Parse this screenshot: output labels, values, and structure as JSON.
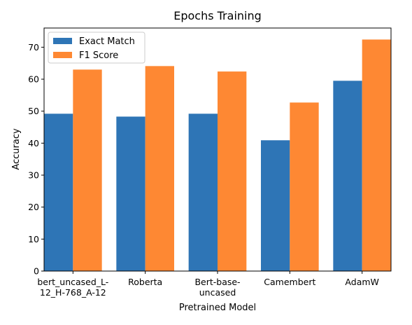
{
  "chart_data": {
    "type": "bar",
    "title": "Epochs Training",
    "xlabel": "Pretrained Model",
    "ylabel": "Accuracy",
    "categories": [
      [
        "bert_uncased_L-",
        "12_H-768_A-12"
      ],
      [
        "Roberta"
      ],
      [
        "Bert-base-",
        "uncased"
      ],
      [
        "Camembert"
      ],
      [
        "AdamW"
      ]
    ],
    "series": [
      {
        "name": "Exact Match",
        "color": "#2e75b6",
        "values": [
          49.2,
          48.3,
          49.2,
          40.9,
          59.5
        ]
      },
      {
        "name": "F1 Score",
        "color": "#fe8833",
        "values": [
          63.0,
          64.1,
          62.4,
          52.7,
          72.4
        ]
      }
    ],
    "ylim": [
      0,
      76
    ],
    "yticks": [
      0,
      10,
      20,
      30,
      40,
      50,
      60,
      70
    ],
    "grid": false,
    "legend": "top-left"
  }
}
